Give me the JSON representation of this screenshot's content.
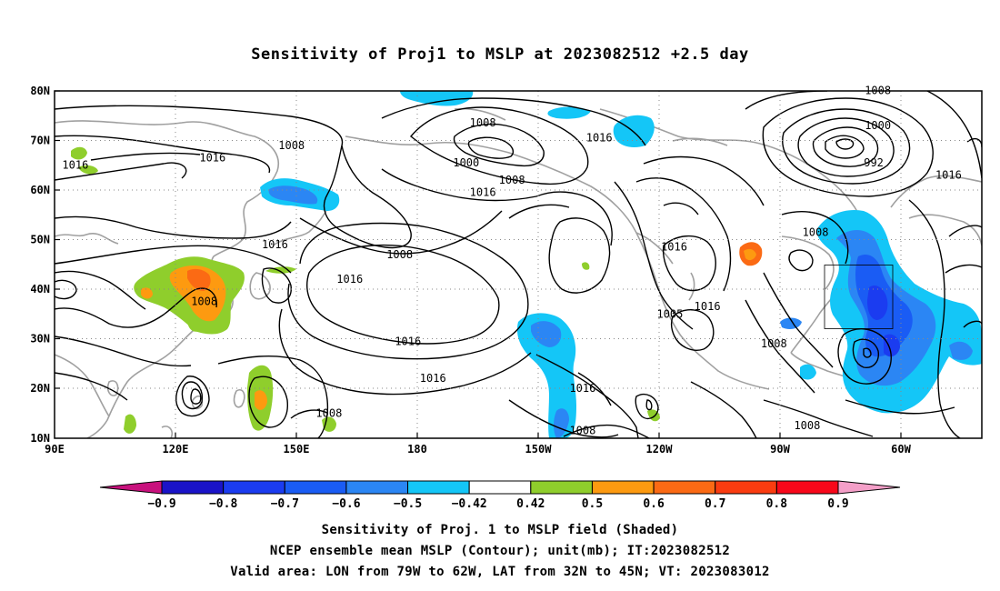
{
  "title": "Sensitivity of Proj1 to MSLP at 2023082512 +2.5 day",
  "lat_labels": [
    "80N",
    "70N",
    "60N",
    "50N",
    "40N",
    "30N",
    "20N",
    "10N"
  ],
  "lon_labels": [
    "90E",
    "120E",
    "150E",
    "180",
    "150W",
    "120W",
    "90W",
    "60W"
  ],
  "contour_labels": [
    {
      "text": "1008",
      "lon": 147,
      "lat": 68.5
    },
    {
      "text": "1016",
      "lon": 95,
      "lat": 64.5
    },
    {
      "text": "1016",
      "lon": 128,
      "lat": 66
    },
    {
      "text": "1016",
      "lon": 143,
      "lat": 48.5
    },
    {
      "text": "1016",
      "lon": 161,
      "lat": 41.5
    },
    {
      "text": "1008",
      "lon": 126,
      "lat": 37
    },
    {
      "text": "1008",
      "lon": 173,
      "lat": 46.5
    },
    {
      "text": "1008",
      "lon": -167,
      "lat": 73
    },
    {
      "text": "1000",
      "lon": -171,
      "lat": 65
    },
    {
      "text": "1008",
      "lon": -160,
      "lat": 61.5
    },
    {
      "text": "1016",
      "lon": -167,
      "lat": 59
    },
    {
      "text": "1016",
      "lon": -139,
      "lat": 70
    },
    {
      "text": "1016",
      "lon": -185,
      "lat": 29
    },
    {
      "text": "1016",
      "lon": -179,
      "lat": 21.5
    },
    {
      "text": "1016",
      "lon": -143,
      "lat": 19.5
    },
    {
      "text": "1008",
      "lon": -143,
      "lat": 11
    },
    {
      "text": "1008",
      "lon": 156,
      "lat": 14.5
    },
    {
      "text": "1016",
      "lon": -121,
      "lat": 48
    },
    {
      "text": "1005",
      "lon": -122,
      "lat": 34.5
    },
    {
      "text": "1016",
      "lon": -113,
      "lat": 36
    },
    {
      "text": "1008",
      "lon": -97,
      "lat": 28.5
    },
    {
      "text": "1008",
      "lon": -89,
      "lat": 12
    },
    {
      "text": "1008",
      "lon": -87,
      "lat": 51
    },
    {
      "text": "1008",
      "lon": -72,
      "lat": 79.5
    },
    {
      "text": "1000",
      "lon": -72,
      "lat": 72.5
    },
    {
      "text": "992",
      "lon": -73,
      "lat": 65
    },
    {
      "text": "1016",
      "lon": -55,
      "lat": 62.5
    }
  ],
  "colorbar": {
    "labels": [
      "−0.9",
      "−0.8",
      "−0.7",
      "−0.6",
      "−0.5",
      "−0.42",
      "0.42",
      "0.5",
      "0.6",
      "0.7",
      "0.8",
      "0.9"
    ],
    "colors": [
      "#1a13c8",
      "#1b3cf0",
      "#1a5cf4",
      "#2b86f4",
      "#14c6f7",
      "#ffffff",
      "#8fce2c",
      "#fd9a10",
      "#fb6a14",
      "#fa3c10",
      "#f8071a"
    ],
    "low_arrow_color": "#c8117d",
    "high_arrow_color": "#f49fc8"
  },
  "captions": [
    "Sensitivity of Proj. 1 to MSLP field (Shaded)",
    "NCEP ensemble mean MSLP (Contour); unit(mb); IT:2023082512",
    "Valid area: LON from 79W to 62W, LAT from 32N to 45N; VT: 2023083012"
  ]
}
